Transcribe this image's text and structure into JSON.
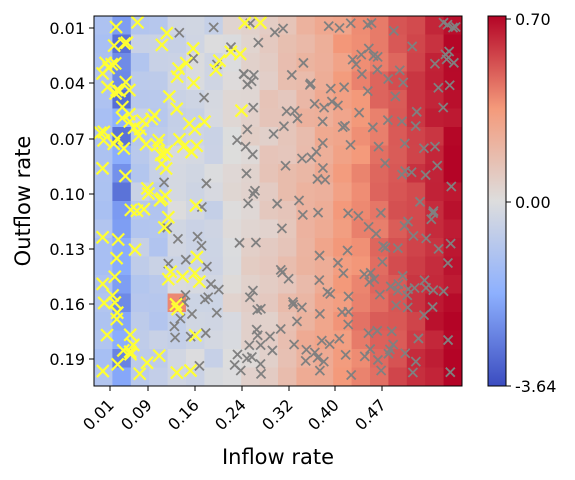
{
  "chart_data": {
    "type": "heatmap",
    "xlabel": "Inflow rate",
    "ylabel": "Outflow rate",
    "x_tick_labels": [
      "0.01",
      "0.09",
      "0.16",
      "0.24",
      "0.32",
      "0.40",
      "0.47"
    ],
    "y_tick_labels": [
      "0.01",
      "0.04",
      "0.07",
      "0.10",
      "0.13",
      "0.16",
      "0.19"
    ],
    "x_range": [
      0.0,
      0.5
    ],
    "y_range": [
      0.0,
      0.2
    ],
    "y_inverted": true,
    "grid": {
      "rows": 20,
      "cols": 20
    },
    "colorbar": {
      "colormap": "coolwarm",
      "tick_labels": [
        "0.70",
        "0.00",
        "-3.64"
      ],
      "vmin": -3.64,
      "vcenter": 0.0,
      "vmax": 0.7
    },
    "marker_colors": {
      "yellow": "#ffff33",
      "gray": "#808080"
    },
    "markers": {
      "yellow_count_approx": 130,
      "gray_count_approx": 260,
      "yellow_region": "left side (inflow < ~0.22)",
      "gray_region": "right side (inflow > ~0.15)"
    }
  }
}
